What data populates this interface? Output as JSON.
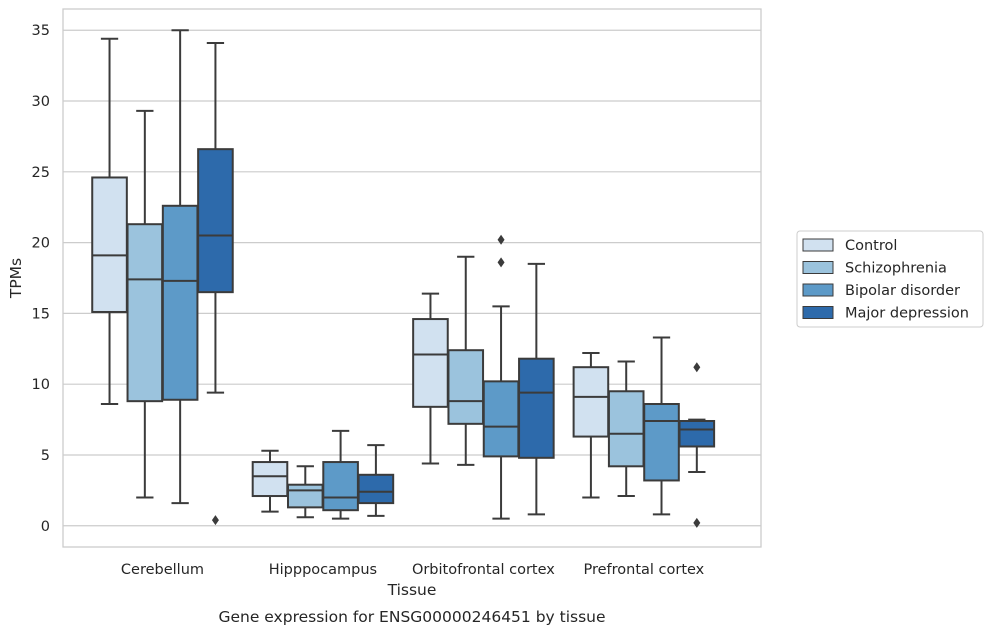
{
  "chart_data": {
    "type": "box",
    "title": "",
    "xlabel": "Tissue",
    "ylabel": "TPMs",
    "caption": "Gene expression for ENSG00000246451 by tissue",
    "ylim": [
      -1.5,
      36.5
    ],
    "yticks": [
      0,
      5,
      10,
      15,
      20,
      25,
      30,
      35
    ],
    "categories": [
      "Cerebellum",
      "Hipppocampus",
      "Orbitofrontal cortex",
      "Prefrontal cortex"
    ],
    "grid": "horizontal",
    "legend_position": "right",
    "series": [
      {
        "name": "Control",
        "color": "#d1e1f0",
        "boxes": [
          {
            "whislo": 8.6,
            "q1": 15.1,
            "med": 19.1,
            "q3": 24.6,
            "whishi": 34.4,
            "fliers": []
          },
          {
            "whislo": 1.0,
            "q1": 2.1,
            "med": 3.5,
            "q3": 4.5,
            "whishi": 5.3,
            "fliers": []
          },
          {
            "whislo": 4.4,
            "q1": 8.4,
            "med": 12.1,
            "q3": 14.6,
            "whishi": 16.4,
            "fliers": []
          },
          {
            "whislo": 2.0,
            "q1": 6.3,
            "med": 9.1,
            "q3": 11.2,
            "whishi": 12.2,
            "fliers": []
          }
        ]
      },
      {
        "name": "Schizophrenia",
        "color": "#9bc3dd",
        "boxes": [
          {
            "whislo": 2.0,
            "q1": 8.8,
            "med": 17.4,
            "q3": 21.3,
            "whishi": 29.3,
            "fliers": []
          },
          {
            "whislo": 0.6,
            "q1": 1.3,
            "med": 2.5,
            "q3": 2.9,
            "whishi": 4.2,
            "fliers": []
          },
          {
            "whislo": 4.3,
            "q1": 7.2,
            "med": 8.8,
            "q3": 12.4,
            "whishi": 19.0,
            "fliers": []
          },
          {
            "whislo": 2.1,
            "q1": 4.2,
            "med": 6.5,
            "q3": 9.5,
            "whishi": 11.6,
            "fliers": []
          }
        ]
      },
      {
        "name": "Bipolar disorder",
        "color": "#5d9ac8",
        "boxes": [
          {
            "whislo": 1.6,
            "q1": 8.9,
            "med": 17.3,
            "q3": 22.6,
            "whishi": 35.0,
            "fliers": []
          },
          {
            "whislo": 0.5,
            "q1": 1.1,
            "med": 2.0,
            "q3": 4.5,
            "whishi": 6.7,
            "fliers": []
          },
          {
            "whislo": 0.5,
            "q1": 4.9,
            "med": 7.0,
            "q3": 10.2,
            "whishi": 15.5,
            "fliers": [
              18.6,
              20.2
            ]
          },
          {
            "whislo": 0.8,
            "q1": 3.2,
            "med": 7.4,
            "q3": 8.6,
            "whishi": 13.3,
            "fliers": []
          }
        ]
      },
      {
        "name": "Major depression",
        "color": "#2d6aab",
        "boxes": [
          {
            "whislo": 9.4,
            "q1": 16.5,
            "med": 20.5,
            "q3": 26.6,
            "whishi": 34.1,
            "fliers": [
              0.4
            ]
          },
          {
            "whislo": 0.7,
            "q1": 1.6,
            "med": 2.4,
            "q3": 3.6,
            "whishi": 5.7,
            "fliers": []
          },
          {
            "whislo": 0.8,
            "q1": 4.8,
            "med": 9.4,
            "q3": 11.8,
            "whishi": 18.5,
            "fliers": []
          },
          {
            "whislo": 3.8,
            "q1": 5.6,
            "med": 6.8,
            "q3": 7.4,
            "whishi": 7.5,
            "fliers": [
              0.2,
              11.2
            ]
          }
        ]
      }
    ]
  }
}
